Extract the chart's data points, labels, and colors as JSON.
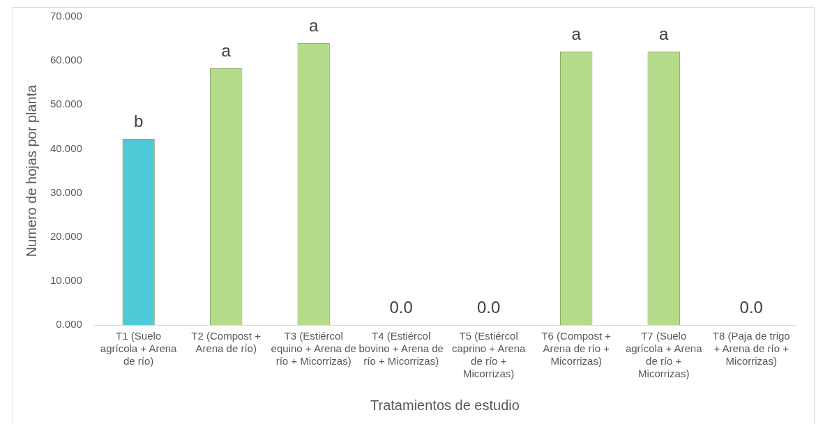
{
  "chart_data": {
    "type": "bar",
    "xlabel": "Tratamientos de estudio",
    "ylabel": "Numero de hojas por planta",
    "categories": [
      "T1 (Suelo agrícola + Arena de río)",
      "T2 (Compost + Arena de río)",
      "T3 (Estiércol equino + Arena de río + Micorrizas)",
      "T4 (Estiércol bovino + Arena de río + Micorrizas)",
      "T5 (Estiércol caprino + Arena de río + Micorrizas)",
      "T6 (Compost + Arena de río + Micorrizas)",
      "T7 (Suelo agrícola + Arena de río + Micorrizas)",
      "T8 (Paja de trigo + Arena de río + Micorrizas)"
    ],
    "values": [
      42.3,
      58.3,
      64.0,
      0,
      0,
      62.1,
      62.1,
      0
    ],
    "colors": [
      "#4fc8d8",
      "#b5dc8a",
      "#b5dc8a",
      "#b5dc8a",
      "#b5dc8a",
      "#b5dc8a",
      "#b5dc8a",
      "#b5dc8a"
    ],
    "value_labels": [
      null,
      null,
      null,
      "0.0",
      "0.0",
      null,
      null,
      "0.0"
    ],
    "annotations": [
      {
        "text": "b",
        "x": "T1 (Suelo agrícola + Arena de río)",
        "y": 42.3
      },
      {
        "text": "a",
        "x": "T2 (Compost + Arena de río)",
        "y": 58.3
      },
      {
        "text": "a",
        "x": "T3 (Estiércol equino + Arena de río + Micorrizas)",
        "y": 64.0
      },
      {
        "text": "a",
        "x": "T6 (Compost + Arena de río + Micorrizas)",
        "y": 62.1
      },
      {
        "text": "a",
        "x": "T7 (Suelo agrícola + Arena de río + Micorrizas)",
        "y": 62.1
      }
    ],
    "ylim": [
      0,
      70
    ],
    "yticks": [
      {
        "value": 0,
        "label": "0.000"
      },
      {
        "value": 10,
        "label": "10.000"
      },
      {
        "value": 20,
        "label": "20.000"
      },
      {
        "value": 30,
        "label": "30.000"
      },
      {
        "value": 40,
        "label": "40.000"
      },
      {
        "value": 50,
        "label": "50.000"
      },
      {
        "value": 60,
        "label": "60.000"
      },
      {
        "value": 70,
        "label": "70.000"
      }
    ],
    "grid": false,
    "legend": false
  }
}
